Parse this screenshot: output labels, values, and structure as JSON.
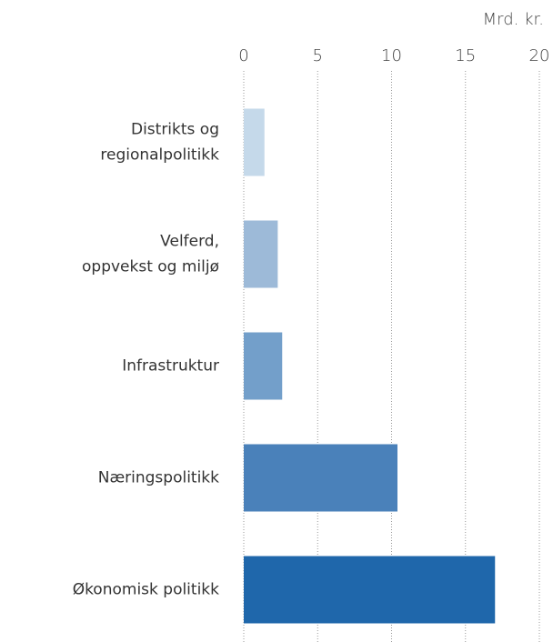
{
  "chart_data": {
    "type": "bar",
    "orientation": "horizontal",
    "x_label": "Mrd. kr.",
    "categories": [
      [
        "Distrikts og",
        "regionalpolitikk"
      ],
      [
        "Velferd,",
        "oppvekst og miljø"
      ],
      [
        "Infrastruktur"
      ],
      [
        "Næringspolitikk"
      ],
      [
        "Økonomisk politikk"
      ]
    ],
    "values": [
      1.4,
      2.3,
      2.6,
      10.4,
      17.0
    ],
    "colors": [
      "#c5d9ea",
      "#9dbad8",
      "#739fca",
      "#4a81ba",
      "#1f67ab"
    ],
    "xlim": [
      0,
      20
    ],
    "xticks": [
      0,
      5,
      10,
      15,
      20
    ],
    "grid": true
  }
}
